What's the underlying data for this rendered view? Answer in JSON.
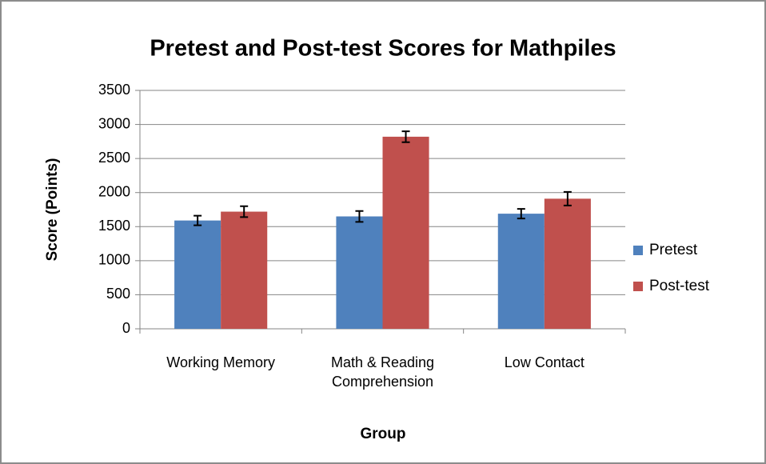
{
  "chart_data": {
    "type": "bar",
    "title": "Pretest and Post-test Scores for Mathpiles",
    "x_label": "Group",
    "y_label": "Score (Points)",
    "categories": [
      "Working Memory",
      "Math & Reading Comprehension",
      "Low Contact"
    ],
    "series": [
      {
        "name": "Pretest",
        "color": "#4f81bd",
        "values": [
          1590,
          1650,
          1690
        ],
        "errors": [
          70,
          80,
          70
        ]
      },
      {
        "name": "Post-test",
        "color": "#c0504d",
        "values": [
          1720,
          2820,
          1910
        ],
        "errors": [
          80,
          80,
          100
        ]
      }
    ],
    "ylim": [
      0,
      3500
    ],
    "yticks": [
      0,
      500,
      1000,
      1500,
      2000,
      2500,
      3000,
      3500
    ],
    "grid": true,
    "legend": "right"
  }
}
